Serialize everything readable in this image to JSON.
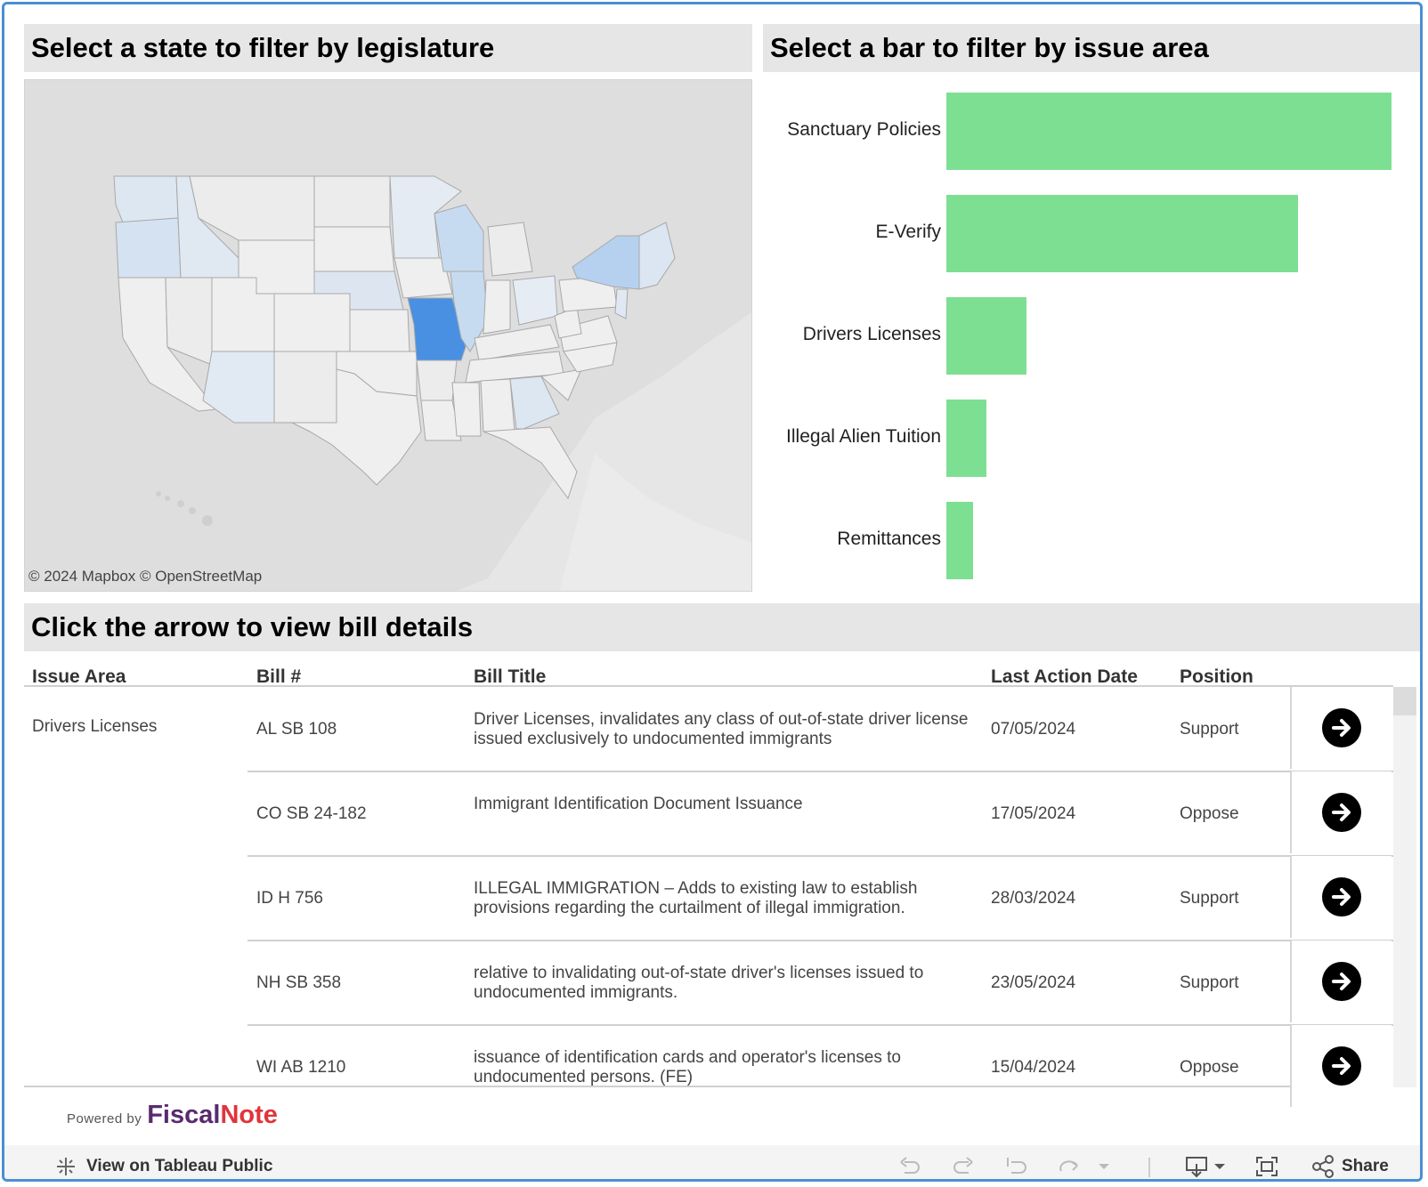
{
  "map": {
    "heading": "Select a state to filter by legislature",
    "attribution": "© 2024 Mapbox  © OpenStreetMap"
  },
  "bars": {
    "heading": "Select a bar to filter by issue area",
    "items": [
      {
        "label": "Sanctuary Policies",
        "value": 100
      },
      {
        "label": "E-Verify",
        "value": 79
      },
      {
        "label": "Drivers Licenses",
        "value": 18
      },
      {
        "label": "Illegal Alien Tuition",
        "value": 9
      },
      {
        "label": "Remittances",
        "value": 6
      }
    ],
    "color": "#7ddf92"
  },
  "table": {
    "heading": "Click the arrow to view bill details",
    "columns": [
      "Issue Area",
      "Bill #",
      "Bill Title",
      "Last Action Date",
      "Position"
    ],
    "issue_area": "Drivers Licenses",
    "rows": [
      {
        "bill": "AL SB 108",
        "title": "Driver Licenses,  invalidates any class of  out-of-state driver license issued exclusively to undocumented immigrants",
        "date": "07/05/2024",
        "position": "Support"
      },
      {
        "bill": "CO SB 24-182",
        "title": "Immigrant Identification Document Issuance",
        "date": "17/05/2024",
        "position": "Oppose"
      },
      {
        "bill": "ID H 756",
        "title": "ILLEGAL IMMIGRATION – Adds to existing law to establish provisions regarding the curtailment of illegal immigration.",
        "date": "28/03/2024",
        "position": "Support"
      },
      {
        "bill": "NH SB 358",
        "title": "relative to invalidating out-of-state driver's licenses issued to undocumented immigrants.",
        "date": "23/05/2024",
        "position": "Support"
      },
      {
        "bill": "WI AB 1210",
        "title": " issuance of identification cards and operator's licenses to undocumented persons. (FE)",
        "date": "15/04/2024",
        "position": "Oppose"
      }
    ]
  },
  "branding": {
    "powered_by": "Powered by",
    "brand_part1": "Fiscal",
    "brand_part2": "Note",
    "brand_color1": "#5a2a6e",
    "brand_color2": "#e0343c"
  },
  "footer": {
    "view_on": "View on Tableau Public",
    "share": "Share"
  },
  "colors": {
    "frame": "#4a8fd6",
    "selected_state": "#4a90e2"
  }
}
